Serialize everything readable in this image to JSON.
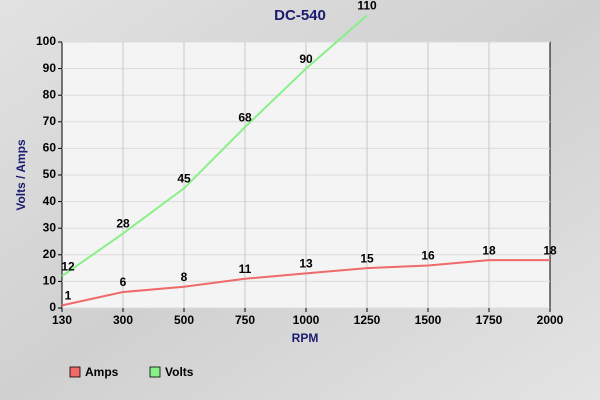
{
  "chart_data": {
    "type": "line",
    "title": "DC-540",
    "xlabel": "RPM",
    "ylabel": "Volts / Amps",
    "categories": [
      "130",
      "300",
      "500",
      "750",
      "1000",
      "1250",
      "1500",
      "1750",
      "2000"
    ],
    "series": [
      {
        "name": "Amps",
        "color": "#f06a6a",
        "values": [
          1,
          6,
          8,
          11,
          13,
          15,
          16,
          18,
          18
        ]
      },
      {
        "name": "Volts",
        "color": "#88f088",
        "values": [
          12,
          28,
          45,
          68,
          90,
          110,
          null,
          null,
          null
        ]
      }
    ],
    "ylim": [
      0,
      100
    ],
    "yticks": [
      0,
      10,
      20,
      30,
      40,
      50,
      60,
      70,
      80,
      90,
      100
    ],
    "grid": true,
    "legend": "bottom-left"
  }
}
